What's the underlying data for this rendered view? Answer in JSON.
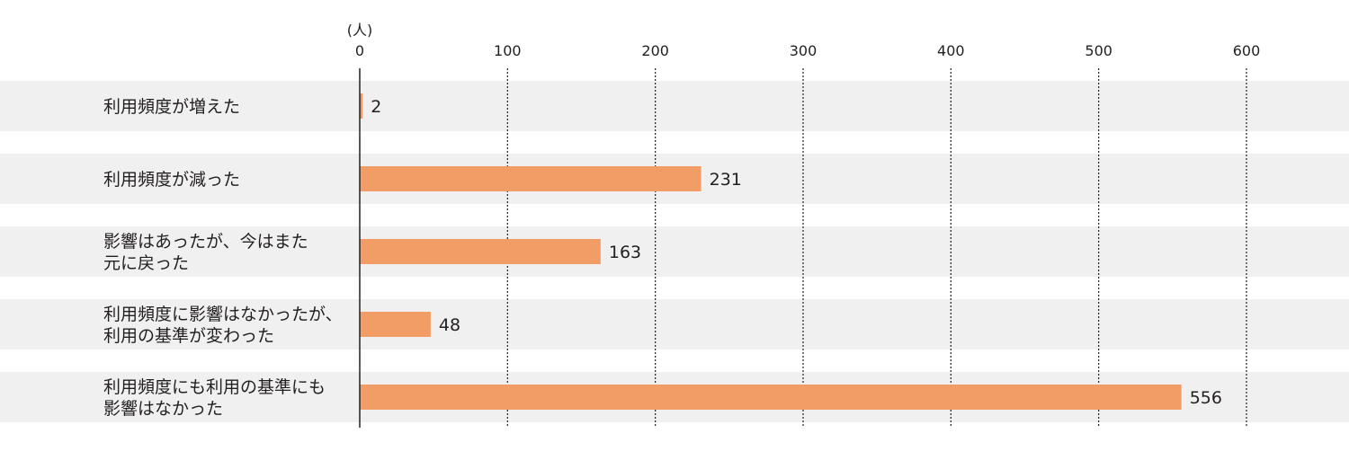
{
  "chart_data": {
    "type": "bar",
    "orientation": "horizontal",
    "unit_label": "(人)",
    "xlim": [
      0,
      600
    ],
    "ticks": [
      0,
      100,
      200,
      300,
      400,
      500,
      600
    ],
    "grid": true,
    "categories": [
      [
        "利用頻度が増えた"
      ],
      [
        "利用頻度が減った"
      ],
      [
        "影響はあったが、今はまた",
        "元に戻った"
      ],
      [
        "利用頻度に影響はなかったが、",
        "利用の基準が変わった"
      ],
      [
        "利用頻度にも利用の基準にも",
        "影響はなかった"
      ]
    ],
    "values": [
      2,
      231,
      163,
      48,
      556
    ],
    "colors": {
      "bar": "#f29d65",
      "band": "#f0f0f0",
      "axis": "#231f20",
      "grid": "#231f20"
    }
  }
}
